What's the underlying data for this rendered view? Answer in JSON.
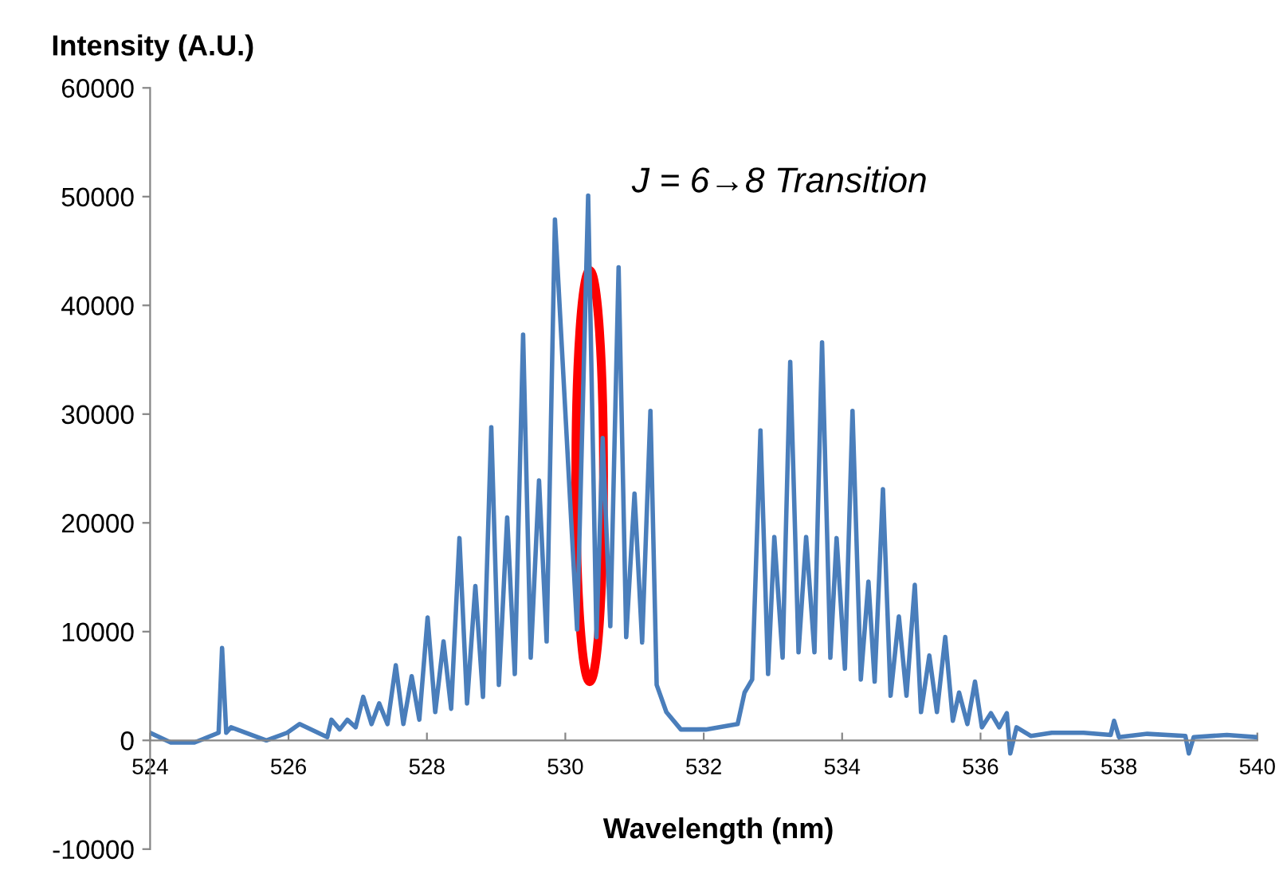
{
  "chart_data": {
    "type": "line",
    "ylabel": "Intensity (A.U.)",
    "xlabel": "Wavelength (nm)",
    "annotations": [
      "J = 6→8 Transition"
    ],
    "xlim": [
      524,
      540
    ],
    "xticks": [
      524,
      526,
      528,
      530,
      532,
      534,
      536,
      538,
      540
    ],
    "ylim": [
      -10000,
      60000
    ],
    "yticks": [
      -10000,
      0,
      10000,
      20000,
      30000,
      40000,
      50000,
      60000
    ],
    "grid": false,
    "legend": false,
    "marker": "none",
    "line_style": "solid",
    "series": [
      {
        "color": "#4a7ebb",
        "x": [
          524.0,
          524.3,
          524.64,
          524.99,
          525.04,
          525.1,
          525.17,
          525.68,
          525.98,
          526.16,
          526.56,
          526.62,
          526.74,
          526.85,
          526.97,
          527.08,
          527.2,
          527.31,
          527.43,
          527.55,
          527.66,
          527.78,
          527.89,
          528.01,
          528.12,
          528.24,
          528.35,
          528.47,
          528.58,
          528.7,
          528.81,
          528.93,
          529.04,
          529.16,
          529.27,
          529.39,
          529.5,
          529.62,
          529.73,
          529.85,
          530.17,
          530.33,
          530.45,
          530.54,
          530.65,
          530.77,
          530.88,
          531.0,
          531.11,
          531.23,
          531.32,
          531.46,
          531.67,
          532.03,
          532.49,
          532.59,
          532.7,
          532.82,
          532.93,
          533.02,
          533.14,
          533.25,
          533.37,
          533.48,
          533.6,
          533.71,
          533.83,
          533.92,
          534.04,
          534.15,
          534.27,
          534.38,
          534.47,
          534.59,
          534.7,
          534.82,
          534.93,
          535.05,
          535.14,
          535.26,
          535.37,
          535.49,
          535.6,
          535.69,
          535.81,
          535.92,
          536.02,
          536.15,
          536.27,
          536.38,
          536.43,
          536.52,
          536.73,
          537.03,
          537.49,
          537.88,
          537.93,
          538.0,
          538.41,
          538.96,
          539.01,
          539.08,
          539.56,
          539.98
        ],
        "values": [
          700,
          -200,
          -200,
          700,
          8500,
          700,
          1200,
          0,
          700,
          1500,
          300,
          1900,
          1000,
          1900,
          1200,
          4000,
          1500,
          3400,
          1500,
          6900,
          1500,
          5900,
          1900,
          11300,
          2600,
          9100,
          2900,
          18600,
          3400,
          14200,
          4000,
          28800,
          5100,
          20500,
          6100,
          37300,
          7600,
          23900,
          9100,
          47900,
          10200,
          50100,
          9500,
          27800,
          10500,
          43500,
          9500,
          22700,
          9000,
          30300,
          5100,
          2600,
          1000,
          1000,
          1500,
          4400,
          5600,
          28500,
          6100,
          18700,
          7600,
          34800,
          8100,
          18700,
          8100,
          36600,
          7600,
          18600,
          6600,
          30300,
          5600,
          14600,
          5400,
          23100,
          4100,
          11400,
          4100,
          14300,
          2600,
          7800,
          2600,
          9500,
          1800,
          4400,
          1500,
          5400,
          1200,
          2500,
          1200,
          2500,
          -1200,
          1200,
          400,
          700,
          700,
          500,
          1800,
          300,
          600,
          400,
          -1200,
          300,
          500,
          300
        ]
      }
    ]
  }
}
